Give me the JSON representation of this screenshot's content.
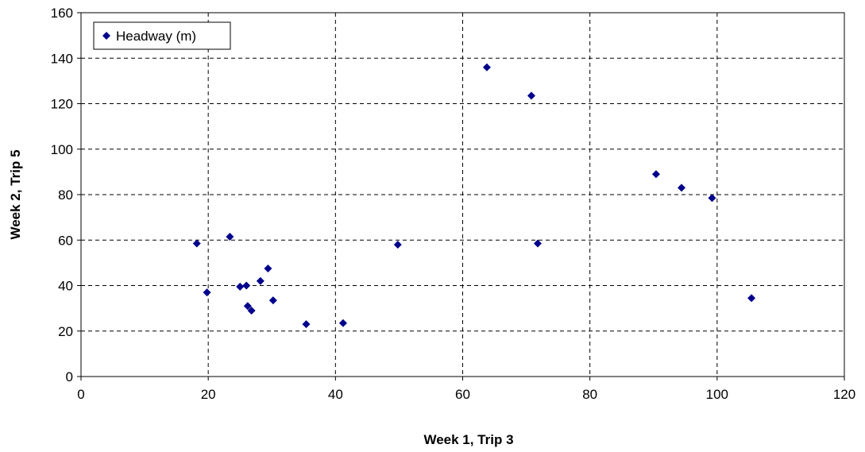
{
  "chart_data": {
    "type": "scatter",
    "title": "",
    "xlabel": "Week 1, Trip 3",
    "ylabel": "Week 2, Trip 5",
    "xlim": [
      0,
      120
    ],
    "ylim": [
      0,
      160
    ],
    "xticks": [
      "0",
      "20",
      "40",
      "60",
      "80",
      "100",
      "120"
    ],
    "yticks": [
      "0",
      "20",
      "40",
      "60",
      "80",
      "100",
      "120",
      "140",
      "160"
    ],
    "grid": true,
    "legend": "top-left",
    "series": [
      {
        "name": "Headway (m)",
        "color": "#00008B",
        "marker": "diamond",
        "x": [
          18.2,
          19.8,
          23.4,
          25.0,
          26.0,
          26.2,
          26.8,
          28.2,
          29.4,
          30.2,
          35.4,
          41.2,
          49.8,
          63.8,
          70.8,
          71.8,
          90.4,
          94.4,
          99.2,
          105.4
        ],
        "y": [
          58.5,
          37.0,
          61.5,
          39.5,
          40.0,
          31.0,
          29.0,
          42.0,
          47.5,
          33.5,
          23.0,
          23.5,
          58.0,
          136.0,
          123.5,
          58.5,
          89.0,
          83.0,
          78.5,
          34.5
        ]
      }
    ]
  }
}
